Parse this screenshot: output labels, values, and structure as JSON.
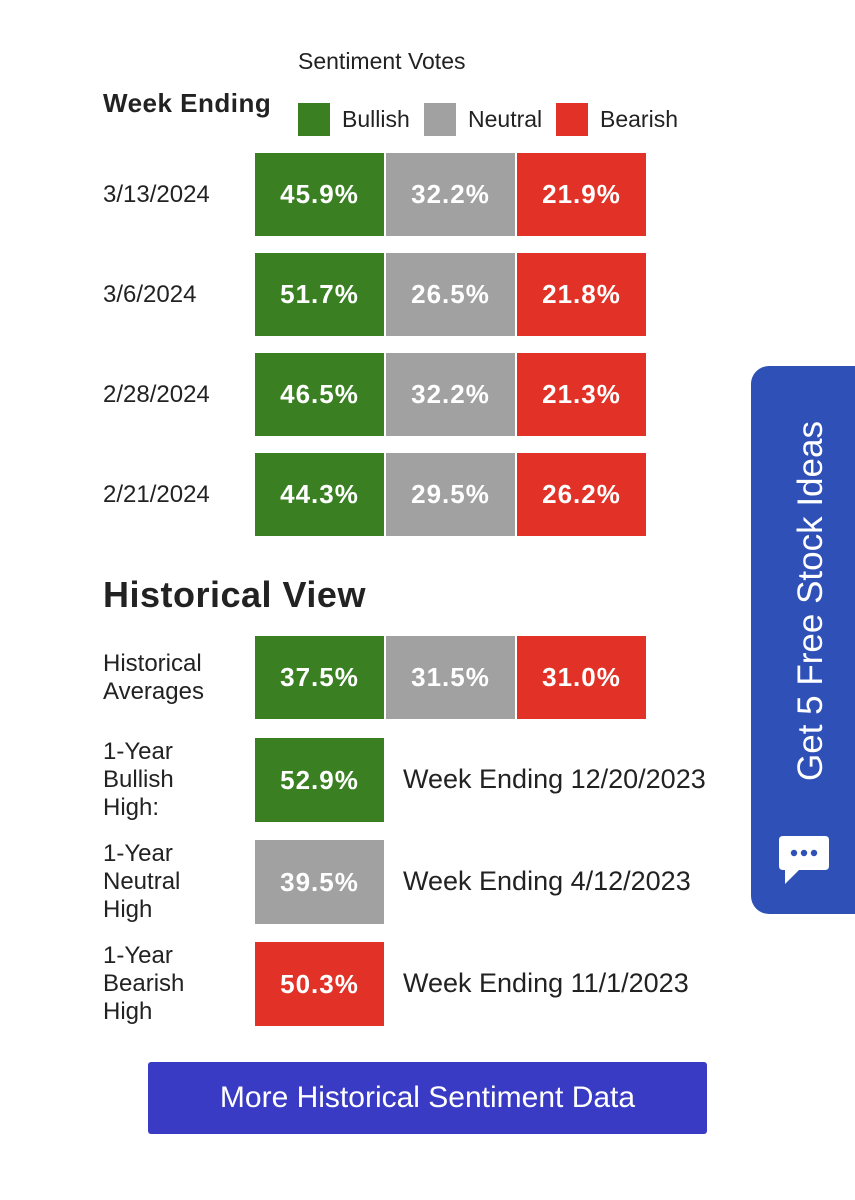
{
  "legend": {
    "title": "Sentiment Votes",
    "week_ending": "Week Ending",
    "bullish": "Bullish",
    "neutral": "Neutral",
    "bearish": "Bearish",
    "colors": {
      "bullish": "#3a8023",
      "neutral": "#a1a1a1",
      "bearish": "#e23227"
    }
  },
  "weeks": [
    {
      "date": "3/13/2024",
      "bullish": "45.9%",
      "neutral": "32.2%",
      "bearish": "21.9%"
    },
    {
      "date": "3/6/2024",
      "bullish": "51.7%",
      "neutral": "26.5%",
      "bearish": "21.8%"
    },
    {
      "date": "2/28/2024",
      "bullish": "46.5%",
      "neutral": "32.2%",
      "bearish": "21.3%"
    },
    {
      "date": "2/21/2024",
      "bullish": "44.3%",
      "neutral": "29.5%",
      "bearish": "26.2%"
    }
  ],
  "historical": {
    "title": "Historical View",
    "averages": {
      "label_line1": "Historical",
      "label_line2": "Averages",
      "bullish": "37.5%",
      "neutral": "31.5%",
      "bearish": "31.0%"
    },
    "bullish_high": {
      "line1": "1-Year",
      "line2": "Bullish",
      "line3": "High:",
      "value": "52.9%",
      "week": "Week Ending 12/20/2023"
    },
    "neutral_high": {
      "line1": "1-Year",
      "line2": "Neutral",
      "line3": "High",
      "value": "39.5%",
      "week": "Week Ending 4/12/2023"
    },
    "bearish_high": {
      "line1": "1-Year",
      "line2": "Bearish",
      "line3": "High",
      "value": "50.3%",
      "week": "Week Ending 11/1/2023"
    }
  },
  "cta": {
    "label": "More Historical Sentiment Data"
  },
  "side_tab": {
    "label": "Get 5 Free Stock Ideas",
    "icon": "chat-bubble-icon",
    "color": "#2f51b7"
  }
}
